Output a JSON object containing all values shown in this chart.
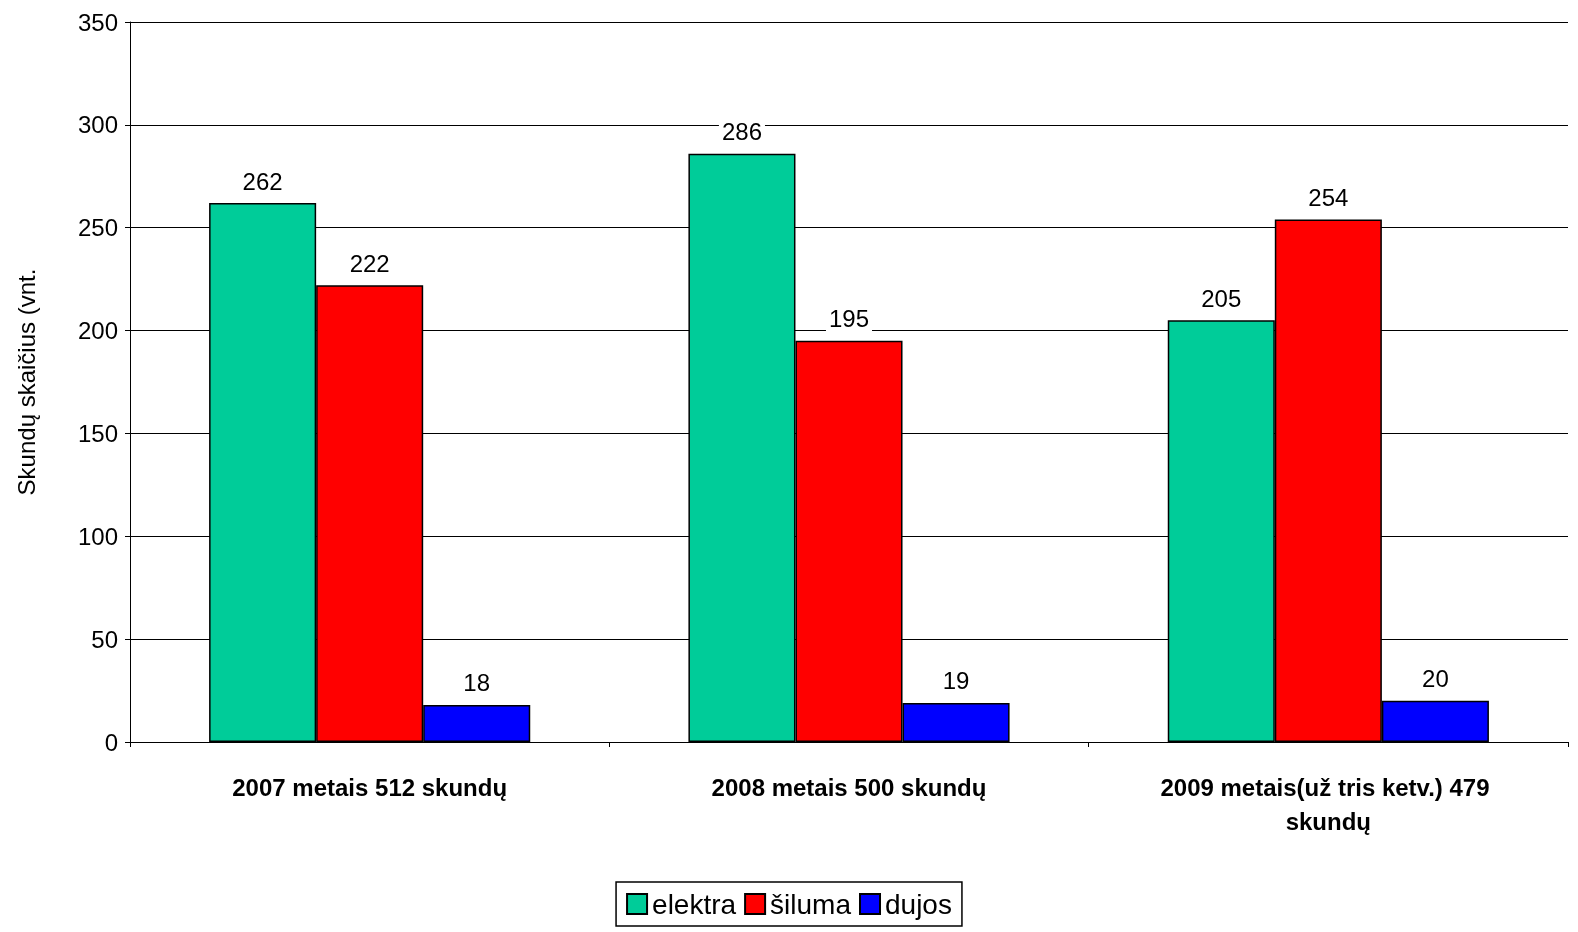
{
  "chart_data": {
    "type": "bar",
    "ylabel": "Skundų skaičius (vnt.",
    "categories": [
      "2007 metais 512 skundų",
      "2008 metais 500 skundų",
      "2009 metais(už tris ketv.) 479 skundų"
    ],
    "series": [
      {
        "name": "elektra",
        "color": "#00cc99",
        "values": [
          262,
          286,
          205
        ]
      },
      {
        "name": "šiluma",
        "color": "#ff0000",
        "values": [
          222,
          195,
          254
        ]
      },
      {
        "name": "dujos",
        "color": "#0000ff",
        "values": [
          18,
          19,
          20
        ]
      }
    ],
    "ylim": [
      0,
      350
    ],
    "yticks": [
      0,
      50,
      100,
      150,
      200,
      250,
      300,
      350
    ],
    "grid": "y",
    "legend": "bottom",
    "data_labels": true
  }
}
